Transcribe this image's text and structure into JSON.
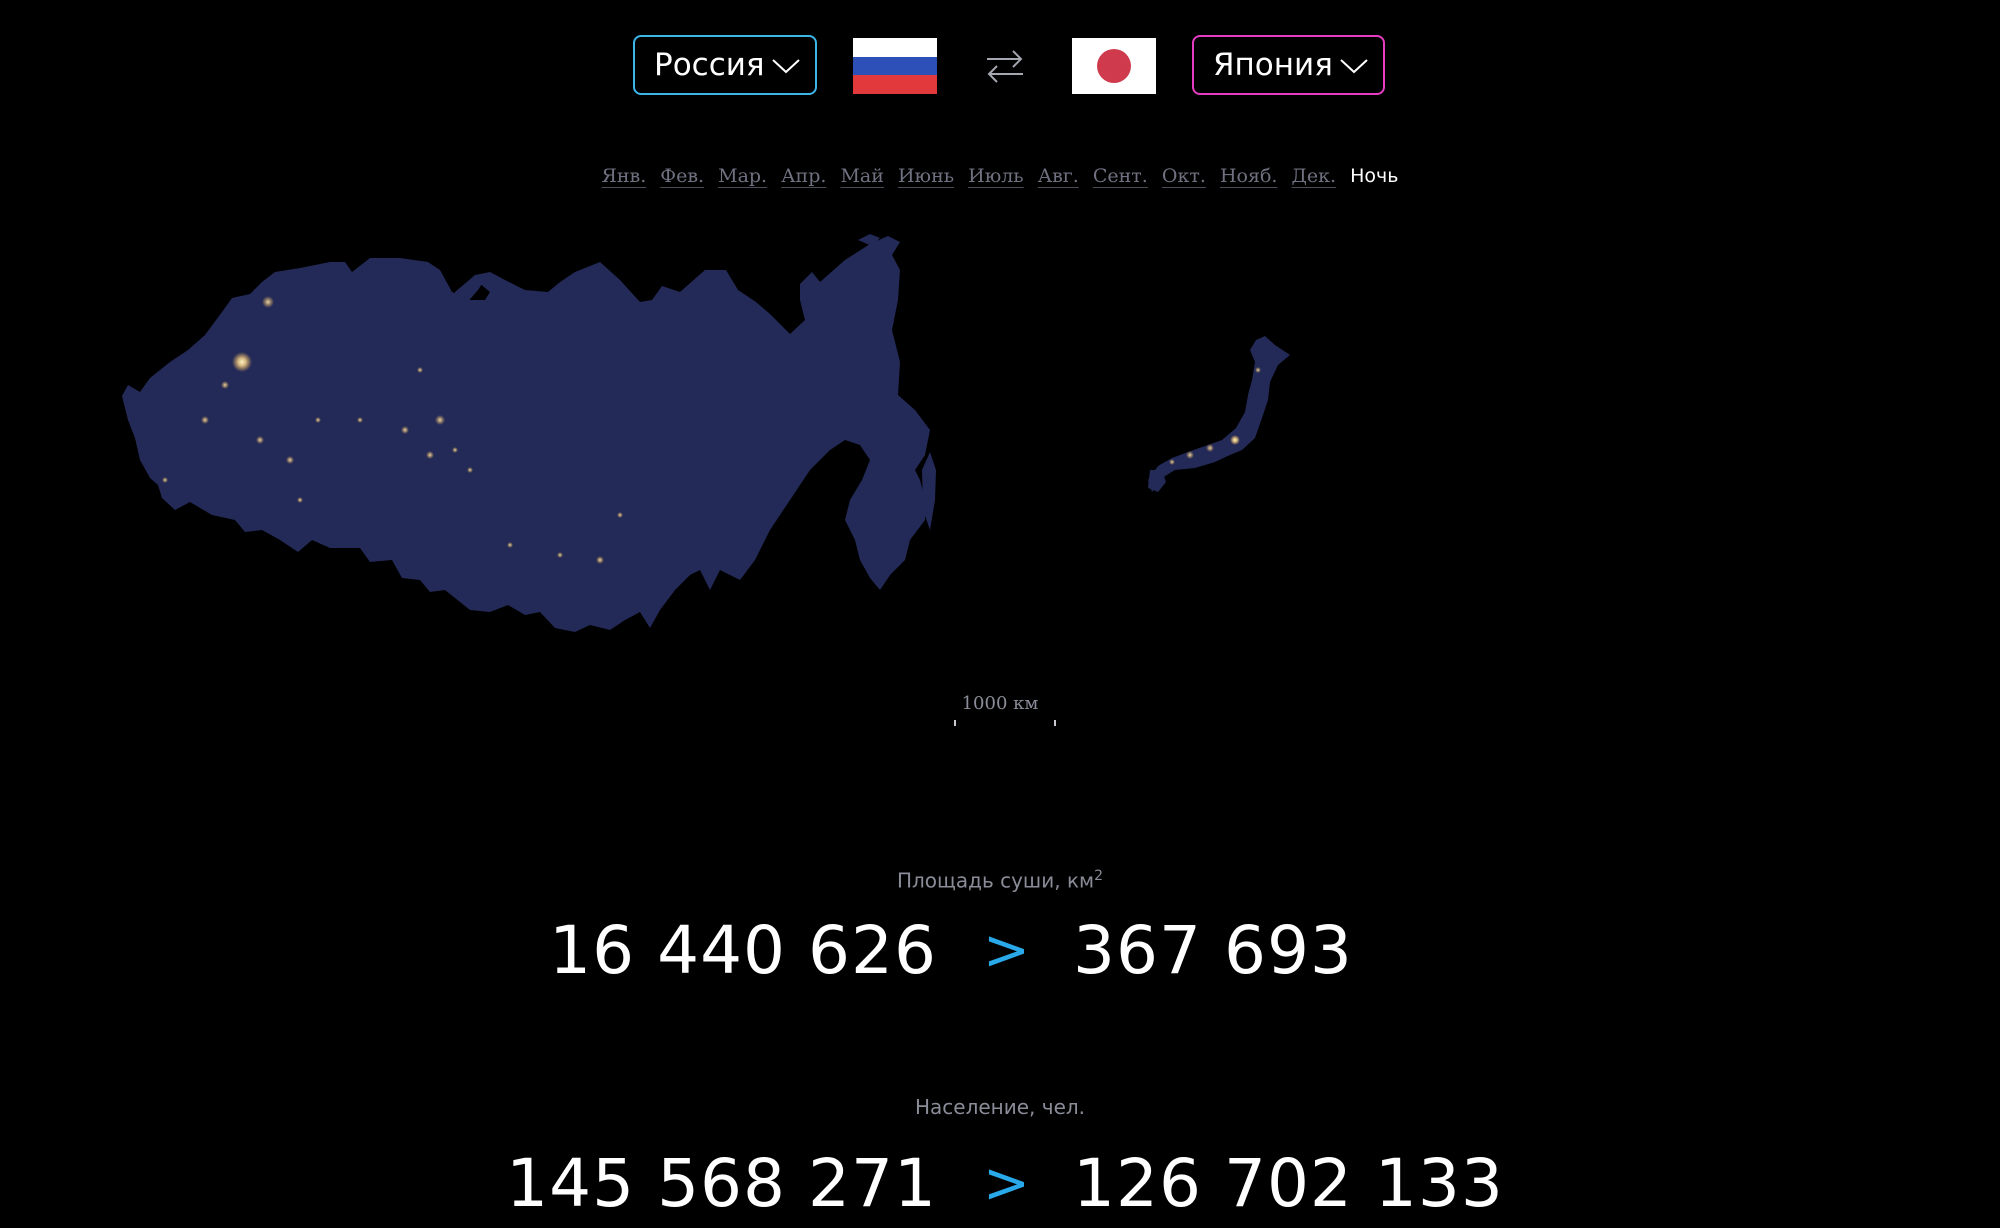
{
  "selector_left": {
    "label": "Россия",
    "border_color": "#3cb6e8"
  },
  "selector_right": {
    "label": "Япония",
    "border_color": "#e53cc1"
  },
  "flags": {
    "left": "russia-flag",
    "right": "japan-flag"
  },
  "swap_icon": "swap-arrows-icon",
  "months": [
    {
      "label": "Янв."
    },
    {
      "label": "Фев."
    },
    {
      "label": "Мар."
    },
    {
      "label": "Апр."
    },
    {
      "label": "Май"
    },
    {
      "label": "Июнь"
    },
    {
      "label": "Июль"
    },
    {
      "label": "Авг."
    },
    {
      "label": "Сент."
    },
    {
      "label": "Окт."
    },
    {
      "label": "Нояб."
    },
    {
      "label": "Дек."
    },
    {
      "label": "Ночь",
      "active": true
    }
  ],
  "scale": {
    "label": "1000 км"
  },
  "stats": {
    "area": {
      "label": "Площадь суши, км",
      "label_sup": "2",
      "left": "16 440 626",
      "comparison": ">",
      "right": "367 693"
    },
    "population": {
      "label": "Население, чел.",
      "left": "145 568 271",
      "comparison": ">",
      "right": "126 702 133"
    }
  },
  "colors": {
    "accent_blue": "#29a9e9",
    "accent_pink": "#e53cc1",
    "land_night": "#232a57",
    "city_lights": "#ffd98a"
  }
}
